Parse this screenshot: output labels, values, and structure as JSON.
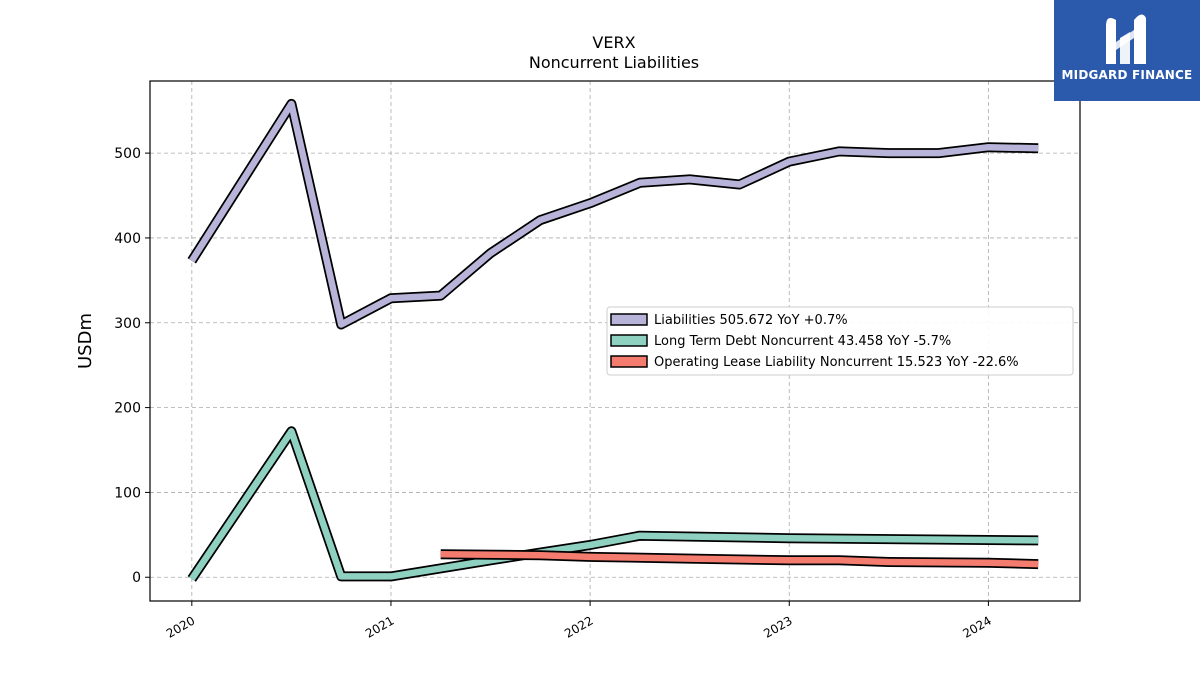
{
  "logo": {
    "text": "MIDGARD FINANCE",
    "icon": "mf-monogram-icon",
    "bg_color": "#2b5aad"
  },
  "chart_data": {
    "type": "line",
    "title": "VERX",
    "subtitle": "Noncurrent  Liabilities",
    "xlabel": "",
    "ylabel": "USDm",
    "xlim": [
      2019.79,
      2024.46
    ],
    "ylim": [
      -28,
      585
    ],
    "x_ticks": [
      2020,
      2021,
      2022,
      2023,
      2024
    ],
    "x_tick_labels": [
      "2020",
      "2021",
      "2022",
      "2023",
      "2024"
    ],
    "y_ticks": [
      0,
      100,
      200,
      300,
      400,
      500
    ],
    "y_tick_labels": [
      "0",
      "100",
      "200",
      "300",
      "400",
      "500"
    ],
    "grid": true,
    "legend_position": "center-right",
    "series": [
      {
        "name": "Liabilities",
        "legend": "Liabilities  505.672 YoY +0.7%",
        "color": "#b8b3d8",
        "points": [
          [
            2020.0,
            373
          ],
          [
            2020.5,
            558
          ],
          [
            2020.75,
            298
          ],
          [
            2021.0,
            329
          ],
          [
            2021.25,
            332
          ],
          [
            2021.5,
            382
          ],
          [
            2021.75,
            421
          ],
          [
            2022.0,
            441
          ],
          [
            2022.25,
            465
          ],
          [
            2022.5,
            469
          ],
          [
            2022.75,
            463
          ],
          [
            2023.0,
            490
          ],
          [
            2023.25,
            502
          ],
          [
            2023.5,
            500
          ],
          [
            2023.75,
            500
          ],
          [
            2024.0,
            507
          ],
          [
            2024.25,
            505.672
          ]
        ]
      },
      {
        "name": "Long Term Debt Noncurrent",
        "legend": "Long Term Debt Noncurrent  43.458 YoY -5.7%",
        "color": "#8fd1c1",
        "points": [
          [
            2020.0,
            -2
          ],
          [
            2020.5,
            172
          ],
          [
            2020.75,
            1
          ],
          [
            2021.0,
            1
          ],
          [
            2021.5,
            20
          ],
          [
            2021.75,
            29
          ],
          [
            2022.0,
            38
          ],
          [
            2022.25,
            49
          ],
          [
            2023.0,
            46
          ],
          [
            2024.25,
            43.458
          ]
        ]
      },
      {
        "name": "Operating Lease Liability Noncurrent",
        "legend": "Operating Lease Liability Noncurrent  15.523 YoY -22.6%",
        "color": "#f47c6e",
        "points": [
          [
            2021.25,
            27
          ],
          [
            2021.75,
            26
          ],
          [
            2022.0,
            24
          ],
          [
            2022.5,
            22
          ],
          [
            2023.0,
            20
          ],
          [
            2023.25,
            20
          ],
          [
            2023.5,
            18
          ],
          [
            2024.0,
            17
          ],
          [
            2024.25,
            15.523
          ]
        ]
      }
    ]
  }
}
